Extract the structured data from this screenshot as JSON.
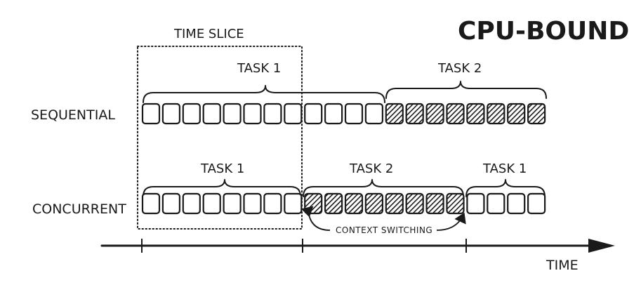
{
  "title": "CPU-BOUND",
  "time_slice_label": "TIME SLICE",
  "time_label": "TIME",
  "context_switching_label": "CONTEXT SWITCHING",
  "colors": {
    "ink": "#1a1a1a",
    "background": "#ffffff"
  },
  "rows": [
    {
      "label": "SEQUENTIAL",
      "segments": [
        {
          "task": "TASK 1",
          "blocks": 12,
          "hatched": false
        },
        {
          "task": "TASK 2",
          "blocks": 8,
          "hatched": true
        }
      ]
    },
    {
      "label": "CONCURRENT",
      "segments": [
        {
          "task": "TASK 1",
          "blocks": 8,
          "hatched": false
        },
        {
          "task": "TASK 2",
          "blocks": 8,
          "hatched": true
        },
        {
          "task": "TASK 1",
          "blocks": 4,
          "hatched": false
        }
      ]
    }
  ]
}
